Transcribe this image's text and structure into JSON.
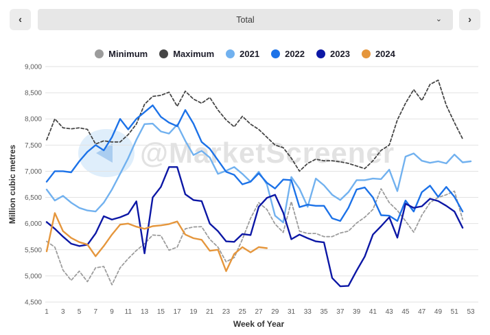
{
  "header": {
    "prev_icon": "‹",
    "next_icon": "›",
    "selector_value": "Total",
    "caret_icon": "⌄"
  },
  "watermark": {
    "text": "@MarketScreener"
  },
  "chart_data": {
    "type": "line",
    "title": "",
    "xlabel": "Week of Year",
    "ylabel": "Million cubic metres",
    "ylim": [
      4500,
      9000
    ],
    "y_tick_step": 500,
    "x_ticks": [
      1,
      3,
      5,
      7,
      9,
      11,
      13,
      15,
      17,
      19,
      21,
      23,
      25,
      27,
      29,
      31,
      33,
      35,
      37,
      39,
      41,
      43,
      45,
      47,
      49,
      51,
      53
    ],
    "grid": true,
    "legend_position": "top",
    "series": [
      {
        "name": "Minimum",
        "color": "#9c9c9c",
        "dashed": true,
        "start_week": 1,
        "values": [
          5660,
          5550,
          5110,
          4915,
          5090,
          4890,
          5155,
          5180,
          4830,
          5155,
          5330,
          5485,
          5615,
          5780,
          5770,
          5490,
          5550,
          5900,
          5935,
          5940,
          5700,
          5550,
          5270,
          5350,
          5700,
          6100,
          6400,
          6270,
          5990,
          5830,
          6420,
          5855,
          5810,
          5810,
          5750,
          5750,
          5820,
          5855,
          6010,
          6120,
          6270,
          6665,
          6400,
          6250,
          6050,
          5835,
          6160,
          6400,
          6500,
          6550,
          6620,
          6080
        ]
      },
      {
        "name": "Maximum",
        "color": "#454545",
        "dashed": true,
        "start_week": 1,
        "values": [
          7600,
          8000,
          7830,
          7810,
          7830,
          7800,
          7520,
          7580,
          7560,
          7560,
          7700,
          7900,
          8280,
          8430,
          8450,
          8510,
          8240,
          8530,
          8380,
          8300,
          8410,
          8170,
          7980,
          7850,
          8050,
          7900,
          7800,
          7650,
          7500,
          7450,
          7250,
          7000,
          7150,
          7230,
          7200,
          7200,
          7180,
          7150,
          7100,
          7050,
          7200,
          7400,
          7500,
          7980,
          8300,
          8560,
          8350,
          8660,
          8740,
          8260,
          7930,
          7620
        ]
      },
      {
        "name": "2021",
        "color": "#71b1ef",
        "dashed": false,
        "start_week": 1,
        "values": [
          6650,
          6440,
          6530,
          6400,
          6300,
          6250,
          6230,
          6400,
          6650,
          6950,
          7250,
          7600,
          7900,
          7910,
          7760,
          7720,
          7890,
          7580,
          7310,
          7390,
          7260,
          6950,
          7010,
          7080,
          6950,
          6800,
          6990,
          6750,
          6150,
          6020,
          6890,
          6665,
          6320,
          6860,
          6730,
          6550,
          6450,
          6600,
          6830,
          6830,
          6860,
          6850,
          7030,
          6620,
          7280,
          7340,
          7200,
          7160,
          7190,
          7150,
          7320,
          7170,
          7190
        ]
      },
      {
        "name": "2022",
        "color": "#1c72e8",
        "dashed": false,
        "start_week": 1,
        "values": [
          6800,
          7000,
          7000,
          6980,
          7190,
          7370,
          7500,
          7400,
          7650,
          8000,
          7800,
          8000,
          8130,
          8260,
          8040,
          7930,
          7860,
          8170,
          7910,
          7560,
          7430,
          7210,
          6990,
          6930,
          6750,
          6800,
          6960,
          6780,
          6670,
          6840,
          6830,
          6315,
          6360,
          6340,
          6340,
          6100,
          6050,
          6300,
          6650,
          6690,
          6500,
          6160,
          6150,
          6050,
          6440,
          6230,
          6600,
          6725,
          6510,
          6700,
          6510,
          6230
        ]
      },
      {
        "name": "2023",
        "color": "#0c17a5",
        "dashed": false,
        "start_week": 1,
        "values": [
          6030,
          5900,
          5750,
          5615,
          5570,
          5595,
          5810,
          6140,
          6075,
          6120,
          6185,
          6425,
          5430,
          6500,
          6700,
          7080,
          7080,
          6560,
          6450,
          6430,
          6000,
          5855,
          5660,
          5650,
          5800,
          5780,
          6320,
          6490,
          6550,
          6210,
          5700,
          5790,
          5720,
          5660,
          5640,
          4960,
          4800,
          4810,
          5100,
          5370,
          5790,
          5950,
          6120,
          5730,
          6380,
          6300,
          6330,
          6475,
          6430,
          6340,
          6230,
          5920
        ]
      },
      {
        "name": "2024",
        "color": "#e5963c",
        "dashed": false,
        "start_week": 1,
        "values": [
          5470,
          6200,
          5855,
          5725,
          5645,
          5600,
          5375,
          5570,
          5790,
          5980,
          6000,
          5940,
          5900,
          5950,
          5965,
          5990,
          6040,
          5790,
          5720,
          5690,
          5480,
          5500,
          5090,
          5420,
          5550,
          5450,
          5550,
          5530
        ]
      }
    ]
  }
}
